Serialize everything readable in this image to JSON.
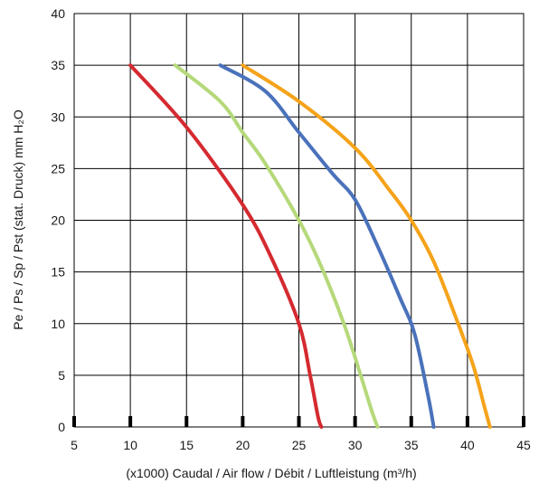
{
  "chart_data": {
    "type": "line",
    "title": "",
    "xlabel": "(x1000) Caudal / Air flow / Débit / Luftleistung (m³/h)",
    "ylabel": "Pe / Ps / Sp / Pst (stat. Druck) mm H₂O",
    "xlim": [
      5,
      45
    ],
    "ylim": [
      0,
      40
    ],
    "xticks": [
      "5",
      "10",
      "15",
      "20",
      "25",
      "30",
      "35",
      "40",
      "45"
    ],
    "yticks": [
      "0",
      "5",
      "10",
      "15",
      "20",
      "25",
      "30",
      "35",
      "40"
    ],
    "grid": true,
    "series": [
      {
        "color": "#d42a30",
        "x": [
          10,
          15,
          20,
          22.5,
          25,
          26,
          26.7,
          27
        ],
        "y": [
          35,
          29,
          21.5,
          16.5,
          10,
          5,
          1,
          0
        ]
      },
      {
        "color": "#b5d97a",
        "x": [
          14,
          18,
          20,
          22,
          25,
          27,
          29,
          30.5,
          31.5,
          32
        ],
        "y": [
          35,
          31.5,
          28.5,
          25.5,
          20,
          15.5,
          10,
          5,
          1.5,
          0
        ]
      },
      {
        "color": "#4a72bb",
        "x": [
          18,
          22,
          25,
          28,
          30,
          32,
          34,
          35.3,
          36.5,
          37
        ],
        "y": [
          35,
          32.5,
          28.5,
          24.5,
          22,
          17.5,
          12.5,
          9,
          3,
          0
        ]
      },
      {
        "color": "#f5a31a",
        "x": [
          20,
          25,
          30,
          33,
          35,
          37,
          39,
          40.5,
          41.5,
          42
        ],
        "y": [
          35,
          31.5,
          27,
          23,
          20,
          16,
          10.5,
          6,
          2,
          0
        ]
      }
    ]
  }
}
